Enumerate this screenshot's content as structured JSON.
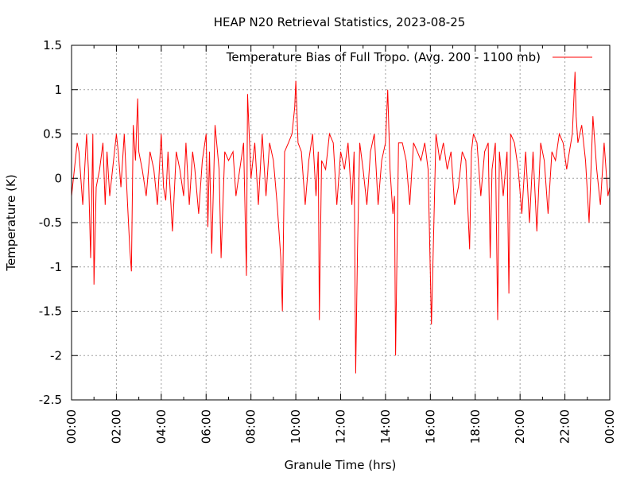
{
  "chart_data": {
    "type": "line",
    "title": "HEAP N20 Retrieval Statistics, 2023-08-25",
    "xlabel": "Granule Time (hrs)",
    "ylabel": "Temperature (K)",
    "xlim": [
      0,
      24
    ],
    "ylim": [
      -2.5,
      1.5
    ],
    "x_ticks": [
      0,
      2,
      4,
      6,
      8,
      10,
      12,
      14,
      16,
      18,
      20,
      22,
      24
    ],
    "x_tick_labels": [
      "00:00",
      "02:00",
      "04:00",
      "06:00",
      "08:00",
      "10:00",
      "12:00",
      "14:00",
      "16:00",
      "18:00",
      "20:00",
      "22:00",
      "00:00"
    ],
    "y_ticks": [
      -2.5,
      -2,
      -1.5,
      -1,
      -0.5,
      0,
      0.5,
      1,
      1.5
    ],
    "y_tick_labels": [
      "-2.5",
      "-2",
      "-1.5",
      "-1",
      "-0.5",
      "0",
      "0.5",
      "1",
      "1.5"
    ],
    "grid": true,
    "legend_position": "top-right",
    "series": [
      {
        "name": "Temperature Bias of Full Tropo. (Avg. 200 - 1100 mb)",
        "color": "#ff0000",
        "x": [
          0.0,
          0.25,
          0.33,
          0.5,
          0.67,
          0.75,
          0.85,
          0.95,
          1.0,
          1.1,
          1.25,
          1.4,
          1.5,
          1.58,
          1.7,
          1.83,
          2.0,
          2.08,
          2.2,
          2.35,
          2.5,
          2.6,
          2.67,
          2.75,
          2.85,
          2.95,
          3.0,
          3.15,
          3.33,
          3.5,
          3.67,
          3.83,
          4.0,
          4.1,
          4.2,
          4.3,
          4.5,
          4.67,
          4.83,
          5.0,
          5.1,
          5.25,
          5.4,
          5.5,
          5.67,
          5.83,
          6.0,
          6.08,
          6.15,
          6.25,
          6.4,
          6.58,
          6.67,
          6.83,
          7.0,
          7.2,
          7.33,
          7.5,
          7.67,
          7.8,
          7.85,
          8.0,
          8.17,
          8.33,
          8.5,
          8.67,
          8.83,
          9.0,
          9.17,
          9.33,
          9.4,
          9.5,
          9.67,
          9.83,
          9.95,
          10.0,
          10.1,
          10.25,
          10.42,
          10.58,
          10.75,
          10.9,
          11.0,
          11.05,
          11.15,
          11.33,
          11.5,
          11.67,
          11.83,
          12.0,
          12.17,
          12.33,
          12.5,
          12.6,
          12.67,
          12.75,
          12.85,
          13.0,
          13.17,
          13.33,
          13.5,
          13.67,
          13.83,
          14.0,
          14.1,
          14.2,
          14.33,
          14.4,
          14.45,
          14.58,
          14.75,
          14.92,
          15.08,
          15.25,
          15.42,
          15.58,
          15.75,
          15.9,
          16.05,
          16.1,
          16.25,
          16.42,
          16.58,
          16.75,
          16.92,
          17.08,
          17.25,
          17.42,
          17.58,
          17.75,
          17.83,
          17.92,
          18.08,
          18.25,
          18.42,
          18.58,
          18.67,
          18.75,
          18.9,
          19.0,
          19.08,
          19.25,
          19.42,
          19.5,
          19.58,
          19.75,
          19.92,
          20.08,
          20.25,
          20.42,
          20.58,
          20.75,
          20.92,
          21.08,
          21.25,
          21.42,
          21.58,
          21.75,
          21.92,
          22.08,
          22.2,
          22.33,
          22.45,
          22.5,
          22.58,
          22.75,
          22.92,
          23.08,
          23.25,
          23.42,
          23.58,
          23.75,
          23.92,
          24.0
        ],
        "y": [
          -0.2,
          0.4,
          0.3,
          -0.3,
          0.5,
          0.1,
          -0.9,
          0.5,
          -1.2,
          -0.1,
          0.1,
          0.4,
          -0.3,
          0.3,
          -0.2,
          0.1,
          0.5,
          0.3,
          -0.1,
          0.5,
          -0.3,
          -0.8,
          -1.05,
          0.6,
          0.2,
          0.9,
          0.3,
          0.1,
          -0.2,
          0.3,
          0.1,
          -0.3,
          0.5,
          -0.1,
          -0.25,
          0.3,
          -0.6,
          0.3,
          0.1,
          -0.2,
          0.4,
          -0.3,
          0.3,
          0.1,
          -0.4,
          0.2,
          0.5,
          -0.55,
          0.3,
          -0.85,
          0.6,
          0.1,
          -0.9,
          0.3,
          0.2,
          0.3,
          -0.2,
          0.1,
          0.4,
          -1.1,
          0.95,
          0.0,
          0.4,
          -0.3,
          0.5,
          -0.2,
          0.4,
          0.2,
          -0.3,
          -0.9,
          -1.5,
          0.3,
          0.4,
          0.5,
          0.8,
          1.1,
          0.4,
          0.3,
          -0.3,
          0.2,
          0.5,
          -0.2,
          0.3,
          -1.6,
          0.2,
          0.1,
          0.5,
          0.4,
          -0.3,
          0.3,
          0.1,
          0.4,
          -0.3,
          0.3,
          -2.2,
          -0.8,
          0.4,
          0.1,
          -0.3,
          0.3,
          0.5,
          -0.3,
          0.2,
          0.4,
          1.0,
          0.1,
          -0.4,
          -0.2,
          -2.0,
          0.4,
          0.4,
          0.2,
          -0.3,
          0.4,
          0.3,
          0.2,
          0.4,
          0.1,
          -1.65,
          -1.1,
          0.5,
          0.2,
          0.4,
          0.1,
          0.3,
          -0.3,
          -0.1,
          0.3,
          0.2,
          -0.8,
          0.3,
          0.5,
          0.4,
          -0.2,
          0.3,
          0.4,
          -0.9,
          0.1,
          0.4,
          -1.6,
          0.3,
          -0.2,
          0.3,
          -1.3,
          0.5,
          0.4,
          0.1,
          -0.4,
          0.3,
          -0.5,
          0.3,
          -0.6,
          0.4,
          0.2,
          -0.4,
          0.3,
          0.2,
          0.5,
          0.4,
          0.1,
          0.3,
          0.5,
          1.2,
          0.7,
          0.4,
          0.6,
          0.2,
          -0.5,
          0.7,
          0.1,
          -0.3,
          0.4,
          -0.2,
          -0.1
        ]
      }
    ]
  }
}
